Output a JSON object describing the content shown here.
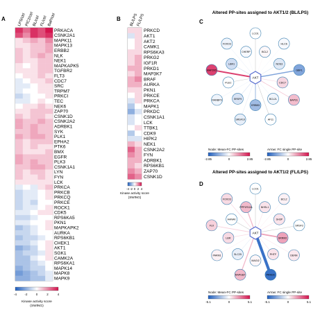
{
  "panels": {
    "A": {
      "letter": "A",
      "columns": [
        "LPS/ctrl",
        "PIC2/ctrl",
        "BL/ctrl",
        "FL/ctrl",
        "BaP/ctrl"
      ],
      "rows": [
        {
          "kinase": "PRKACA",
          "values": [
            3.5,
            2.5,
            3.5,
            3,
            4
          ]
        },
        {
          "kinase": "CSNK2A1",
          "values": [
            3,
            2,
            3.5,
            3,
            3.5
          ]
        },
        {
          "kinase": "MAPK11",
          "values": [
            0.5,
            1,
            1.5,
            1,
            2
          ]
        },
        {
          "kinase": "MAPK13",
          "values": [
            0.5,
            0.5,
            1,
            1,
            1.5
          ]
        },
        {
          "kinase": "ERBB2",
          "values": [
            1,
            0.5,
            1,
            1,
            1.5
          ]
        },
        {
          "kinase": "NLK",
          "values": [
            1,
            0.5,
            1,
            1.5,
            1
          ]
        },
        {
          "kinase": "NEK1",
          "values": [
            1,
            0.5,
            0.5,
            1,
            1
          ]
        },
        {
          "kinase": "MAPKAPK5",
          "values": [
            0.5,
            0,
            0.5,
            1,
            1
          ]
        },
        {
          "kinase": "TGFBR2",
          "values": [
            0.5,
            0.5,
            0.5,
            1,
            1
          ]
        },
        {
          "kinase": "FLT3",
          "values": [
            0,
            0.5,
            0.5,
            1,
            0.5
          ]
        },
        {
          "kinase": "CDC7",
          "values": [
            -0.5,
            0,
            0.5,
            0.5,
            1
          ]
        },
        {
          "kinase": "SRC",
          "values": [
            -0.5,
            -0.5,
            0,
            0.5,
            0.5
          ]
        },
        {
          "kinase": "TRPM7",
          "values": [
            -0.5,
            0,
            0,
            0.5,
            0.5
          ]
        },
        {
          "kinase": "PRKCI",
          "values": [
            -1,
            -0.5,
            0,
            0,
            0.5
          ]
        },
        {
          "kinase": "TEC",
          "values": [
            -0.5,
            -0.5,
            0,
            0.5,
            0
          ]
        },
        {
          "kinase": "NEK6",
          "values": [
            0,
            0.5,
            0.5,
            1,
            0.5
          ]
        },
        {
          "kinase": "ZAP70",
          "values": [
            0.5,
            0.5,
            1,
            1,
            1
          ]
        },
        {
          "kinase": "CSNK1D",
          "values": [
            1,
            0.5,
            1,
            1,
            0.5
          ]
        },
        {
          "kinase": "CSNK2A2",
          "values": [
            1.5,
            1,
            1,
            1.5,
            1
          ]
        },
        {
          "kinase": "ADRBK1",
          "values": [
            1.5,
            1,
            1.5,
            1,
            1
          ]
        },
        {
          "kinase": "SYK",
          "values": [
            1,
            1,
            1.5,
            1,
            1
          ]
        },
        {
          "kinase": "PLK1",
          "values": [
            1.5,
            1,
            1.5,
            1.5,
            1
          ]
        },
        {
          "kinase": "EPHA2",
          "values": [
            1,
            0.5,
            1,
            1,
            1
          ]
        },
        {
          "kinase": "PTK6",
          "values": [
            1,
            0.5,
            1,
            0.5,
            0.5
          ]
        },
        {
          "kinase": "BMX",
          "values": [
            1,
            0.5,
            0.5,
            0.5,
            1
          ]
        },
        {
          "kinase": "EGFR",
          "values": [
            1.5,
            1,
            1,
            1,
            1
          ]
        },
        {
          "kinase": "PLK3",
          "values": [
            1.5,
            1,
            1.5,
            1,
            1
          ]
        },
        {
          "kinase": "CSNK1A1",
          "values": [
            1,
            1,
            1.5,
            1.5,
            1
          ]
        },
        {
          "kinase": "LYN",
          "values": [
            1,
            0.5,
            1,
            1,
            0.5
          ]
        },
        {
          "kinase": "FYN",
          "values": [
            1,
            0.5,
            0.5,
            1,
            0.5
          ]
        },
        {
          "kinase": "LCK",
          "values": [
            0.5,
            0.5,
            0.5,
            0.5,
            0.5
          ]
        },
        {
          "kinase": "PRKCA",
          "values": [
            -0.5,
            0,
            -0.5,
            0.5,
            1
          ]
        },
        {
          "kinase": "PRKCB",
          "values": [
            -1,
            -0.5,
            -0.5,
            0,
            0.5
          ]
        },
        {
          "kinase": "PRKCQ",
          "values": [
            -1,
            -0.5,
            -0.5,
            0,
            0.5
          ]
        },
        {
          "kinase": "PRKCE",
          "values": [
            -1,
            -0.5,
            -1,
            0,
            0
          ]
        },
        {
          "kinase": "ROCK1",
          "values": [
            -1,
            -0.5,
            -0.5,
            0,
            0.5
          ]
        },
        {
          "kinase": "CDK5",
          "values": [
            -0.5,
            -0.5,
            0,
            0.5,
            0.5
          ]
        },
        {
          "kinase": "RPS6KA5",
          "values": [
            -1,
            -1,
            -0.5,
            0,
            0
          ]
        },
        {
          "kinase": "PKN1",
          "values": [
            -0.5,
            -0.5,
            0,
            0,
            0.5
          ]
        },
        {
          "kinase": "MAPKAPK2",
          "values": [
            -1.5,
            -1,
            -0.5,
            0,
            0.5
          ]
        },
        {
          "kinase": "AURKA",
          "values": [
            -1,
            -1,
            -0.5,
            0,
            0
          ]
        },
        {
          "kinase": "RPS6KB1",
          "values": [
            -1.5,
            -1,
            -1,
            -0.5,
            0
          ]
        },
        {
          "kinase": "CHEK1",
          "values": [
            -1,
            -1,
            -0.5,
            0,
            0.5
          ]
        },
        {
          "kinase": "AKT1",
          "values": [
            -2,
            -1.5,
            -1,
            0,
            0.5
          ]
        },
        {
          "kinase": "SGK1",
          "values": [
            -1.5,
            -1,
            -1,
            -0.5,
            0.5
          ]
        },
        {
          "kinase": "CAMK2A",
          "values": [
            -1.5,
            -1.5,
            -0.5,
            0,
            0.5
          ]
        },
        {
          "kinase": "RPS6KA1",
          "values": [
            -1.5,
            -1.5,
            -1,
            -0.5,
            0
          ]
        },
        {
          "kinase": "MAPK14",
          "values": [
            -2,
            -1.5,
            -1,
            -1,
            0
          ]
        },
        {
          "kinase": "MAPK8",
          "values": [
            -2.5,
            -2,
            -1.5,
            -1,
            -0.5
          ]
        },
        {
          "kinase": "MAPK9",
          "values": [
            -2,
            -2,
            -1.5,
            -1.5,
            -0.5
          ]
        }
      ],
      "scale_ticks": [
        "-4",
        "-2",
        "0",
        "2",
        "4"
      ],
      "scale_title": "Kinase activity score",
      "scale_sub": "(SWING)"
    },
    "B": {
      "letter": "B",
      "columns": [
        "BL/LPS",
        "FL/LPS"
      ],
      "rows": [
        {
          "kinase": "PRKCD",
          "values": [
            0.5,
            0.5
          ]
        },
        {
          "kinase": "AKT1",
          "values": [
            -0.5,
            0.5
          ]
        },
        {
          "kinase": "AKT2",
          "values": [
            0,
            0.5
          ]
        },
        {
          "kinase": "CAMK1",
          "values": [
            0,
            0.5
          ]
        },
        {
          "kinase": "RPS6KA3",
          "values": [
            0.5,
            0.5
          ]
        },
        {
          "kinase": "PRKG2",
          "values": [
            0.5,
            1
          ]
        },
        {
          "kinase": "IGF1R",
          "values": [
            0.5,
            1
          ]
        },
        {
          "kinase": "PRKD1",
          "values": [
            1,
            1
          ]
        },
        {
          "kinase": "MAP3K7",
          "values": [
            0.5,
            1
          ]
        },
        {
          "kinase": "BRAF",
          "values": [
            1,
            1.5
          ]
        },
        {
          "kinase": "AURKA",
          "values": [
            1,
            1
          ]
        },
        {
          "kinase": "PKN1",
          "values": [
            0.5,
            0.5
          ]
        },
        {
          "kinase": "PRKCE",
          "values": [
            0,
            0.5
          ]
        },
        {
          "kinase": "PRKCA",
          "values": [
            -0.5,
            0.5
          ]
        },
        {
          "kinase": "MAPK1",
          "values": [
            -1,
            0
          ]
        },
        {
          "kinase": "PRKDC",
          "values": [
            -1.5,
            -0.5
          ]
        },
        {
          "kinase": "CSNK1A1",
          "values": [
            -0.5,
            0
          ]
        },
        {
          "kinase": "LCK",
          "values": [
            -0.5,
            0
          ]
        },
        {
          "kinase": "TTBK1",
          "values": [
            0,
            0.5
          ]
        },
        {
          "kinase": "CDK9",
          "values": [
            -1,
            0
          ]
        },
        {
          "kinase": "HIPK2",
          "values": [
            -0.5,
            -0.5
          ]
        },
        {
          "kinase": "NEK1",
          "values": [
            1,
            0.5
          ]
        },
        {
          "kinase": "CSNK2A2",
          "values": [
            2,
            1
          ]
        },
        {
          "kinase": "FYN",
          "values": [
            1.5,
            1
          ]
        },
        {
          "kinase": "ADRBK1",
          "values": [
            1,
            1
          ]
        },
        {
          "kinase": "RPS6KB1",
          "values": [
            1,
            0.5
          ]
        },
        {
          "kinase": "ZAP70",
          "values": [
            1.5,
            1
          ]
        },
        {
          "kinase": "CSNK1D",
          "values": [
            2,
            1.5
          ]
        }
      ],
      "scale_ticks": [
        "-4",
        "-2",
        "0",
        "2",
        "4"
      ],
      "scale_title": "Kinase activity score",
      "scale_sub": "(SWING)"
    },
    "C": {
      "letter": "C",
      "title": "Altered PP-sites assigned to AKT1/2 (BL/LPS)",
      "center": "AKT",
      "nodes": [
        {
          "label": "LCO1",
          "fc": 0
        },
        {
          "label": "BCL2",
          "fc": 0.1
        },
        {
          "label": "HLC6",
          "fc": -0.1
        },
        {
          "label": "NOS3",
          "fc": -0.4
        },
        {
          "label": "GBF1",
          "fc": -1.6
        },
        {
          "label": "CDC7",
          "fc": 0.5
        },
        {
          "label": "BAP31",
          "fc": 0.8
        },
        {
          "label": "BCL2L",
          "fc": -0.2
        },
        {
          "label": "AF11",
          "fc": 0
        },
        {
          "label": "ERBB3",
          "fc": -1.2
        },
        {
          "label": "SRSF10",
          "fc": -0.3
        },
        {
          "label": "SRSF9",
          "fc": -0.5
        },
        {
          "label": "RANBP3",
          "fc": -0.2
        },
        {
          "label": "PLEC",
          "fc": 0
        },
        {
          "label": "MAP2K5",
          "fc": 2.3
        },
        {
          "label": "LBR1",
          "fc": -0.6
        },
        {
          "label": "FOXO3",
          "fc": -0.2
        },
        {
          "label": "CHERP",
          "fc": -0.1
        }
      ],
      "legend_node": "Node: Mean-FC PP-sites",
      "legend_arrow": "Arrow: FC single PP-site",
      "node_ticks": [
        "-2.85",
        "0",
        "2.85"
      ],
      "arrow_ticks": [
        "-2.85",
        "0",
        "2.85"
      ]
    },
    "D": {
      "letter": "D",
      "title": "Altered PP-sites assigned to AKT1/2 (FL/LPS)",
      "center": "AKT",
      "nodes": [
        {
          "label": "LCO1",
          "fc": 0
        },
        {
          "label": "NHSL1",
          "fc": 0.6
        },
        {
          "label": "BCL2",
          "fc": 0.3
        },
        {
          "label": "SH3P",
          "fc": 0.6
        },
        {
          "label": "SRSF3",
          "fc": 0
        },
        {
          "label": "SRRM2",
          "fc": 2
        },
        {
          "label": "DENN",
          "fc": 0.5
        },
        {
          "label": "PHTF",
          "fc": 0.6
        },
        {
          "label": "PRKDC",
          "fc": -4.5
        },
        {
          "label": "MAGI2",
          "fc": 0.2
        },
        {
          "label": "RAPGEF",
          "fc": 1.5
        },
        {
          "label": "SLC25",
          "fc": -0.5
        },
        {
          "label": "PARM1",
          "fc": 0.3
        },
        {
          "label": "LBR",
          "fc": 0.8
        },
        {
          "label": "FLII",
          "fc": 1
        },
        {
          "label": "AHNAK",
          "fc": 0
        },
        {
          "label": "FOXO3",
          "fc": 0.8
        },
        {
          "label": "PPP1R12A",
          "fc": 1.5
        }
      ],
      "legend_node": "Node: Mean-FC PP-sites",
      "legend_arrow": "Arrow: FC single PP-site",
      "node_ticks": [
        "-5.1",
        "0",
        "5.1"
      ],
      "arrow_ticks": [
        "-5.1",
        "0",
        "5.1"
      ]
    }
  },
  "colors": {
    "negative": "#1f5fbf",
    "neutral": "#ffffff",
    "positive": "#d4144e"
  }
}
